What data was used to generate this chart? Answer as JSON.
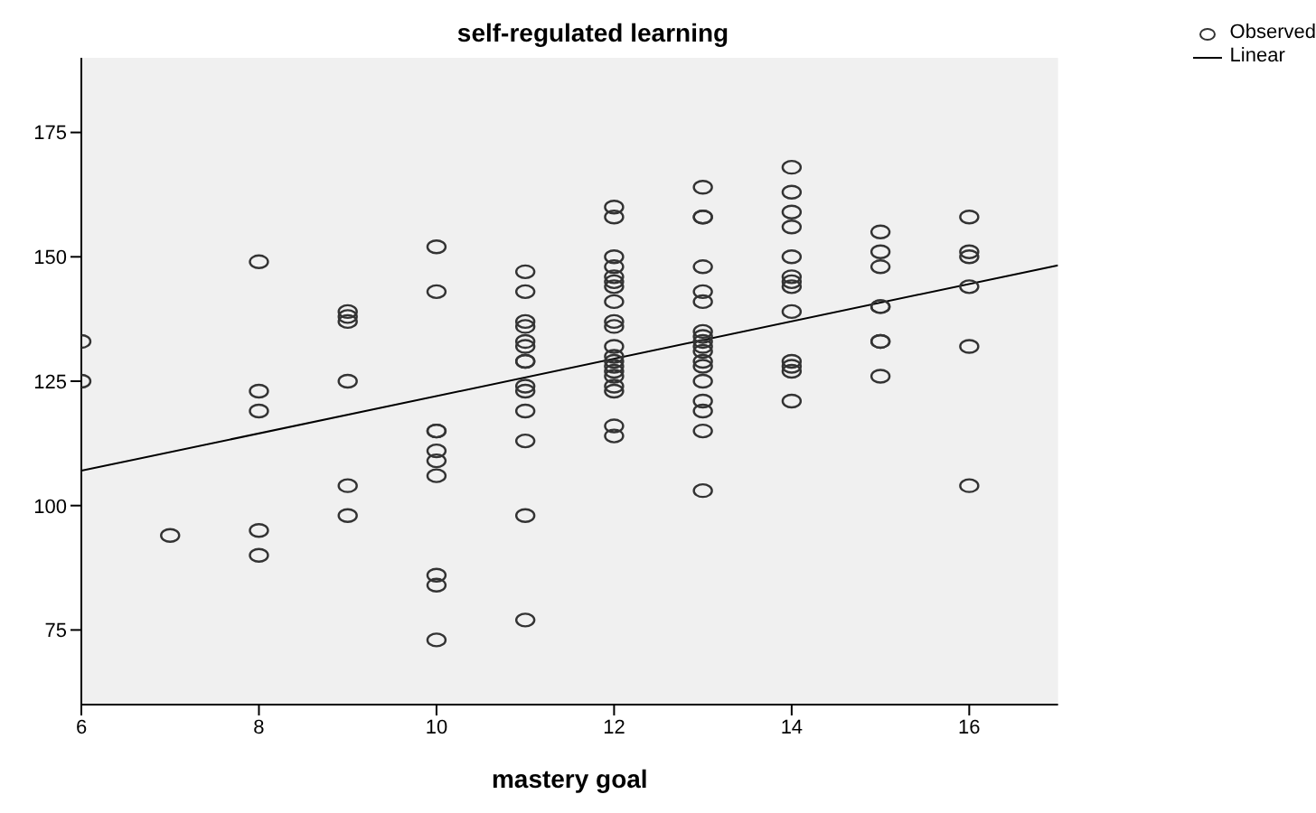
{
  "chart_data": {
    "type": "scatter",
    "title": "self-regulated learning",
    "xlabel": "mastery goal",
    "xlim": [
      6,
      17
    ],
    "xticks": [
      6,
      8,
      10,
      12,
      14,
      16
    ],
    "ylim": [
      60,
      190
    ],
    "yticks": [
      75,
      100,
      125,
      150,
      175
    ],
    "legend": "top right",
    "marker": "circle",
    "series": [
      {
        "name": "Observed",
        "color": "#333333",
        "x": [
          6,
          6,
          7,
          8,
          8,
          8,
          8,
          8,
          9,
          9,
          9,
          9,
          9,
          9,
          10,
          10,
          10,
          10,
          10,
          10,
          10,
          10,
          10,
          10,
          11,
          11,
          11,
          11,
          11,
          11,
          11,
          11,
          11,
          11,
          11,
          11,
          11,
          11,
          12,
          12,
          12,
          12,
          12,
          12,
          12,
          12,
          12,
          12,
          12,
          12,
          12,
          12,
          12,
          12,
          12,
          12,
          12,
          12,
          13,
          13,
          13,
          13,
          13,
          13,
          13,
          13,
          13,
          13,
          13,
          13,
          13,
          13,
          13,
          13,
          13,
          13,
          14,
          14,
          14,
          14,
          14,
          14,
          14,
          14,
          14,
          14,
          14,
          14,
          14,
          15,
          15,
          15,
          15,
          15,
          15,
          15,
          15,
          16,
          16,
          16,
          16,
          16,
          16
        ],
        "values": [
          133,
          125,
          94,
          149,
          123,
          119,
          95,
          90,
          139,
          138,
          137,
          125,
          104,
          98,
          152,
          143,
          115,
          115,
          111,
          109,
          106,
          86,
          84,
          73,
          147,
          143,
          137,
          136,
          133,
          132,
          129,
          129,
          124,
          123,
          119,
          113,
          98,
          77,
          160,
          158,
          150,
          148,
          146,
          145,
          144,
          141,
          137,
          136,
          132,
          130,
          129,
          128,
          127,
          126,
          124,
          123,
          116,
          114,
          164,
          158,
          158,
          148,
          143,
          141,
          135,
          134,
          133,
          132,
          131,
          129,
          128,
          125,
          121,
          119,
          115,
          103,
          168,
          163,
          159,
          156,
          150,
          146,
          145,
          144,
          139,
          129,
          128,
          127,
          121,
          155,
          151,
          148,
          140,
          140,
          133,
          133,
          126,
          158,
          151,
          150,
          144,
          132,
          104
        ]
      },
      {
        "name": "Linear",
        "type": "line",
        "color": "#000000",
        "marker": "none",
        "x": [
          6,
          17
        ],
        "values": [
          107,
          148.3
        ]
      }
    ]
  }
}
